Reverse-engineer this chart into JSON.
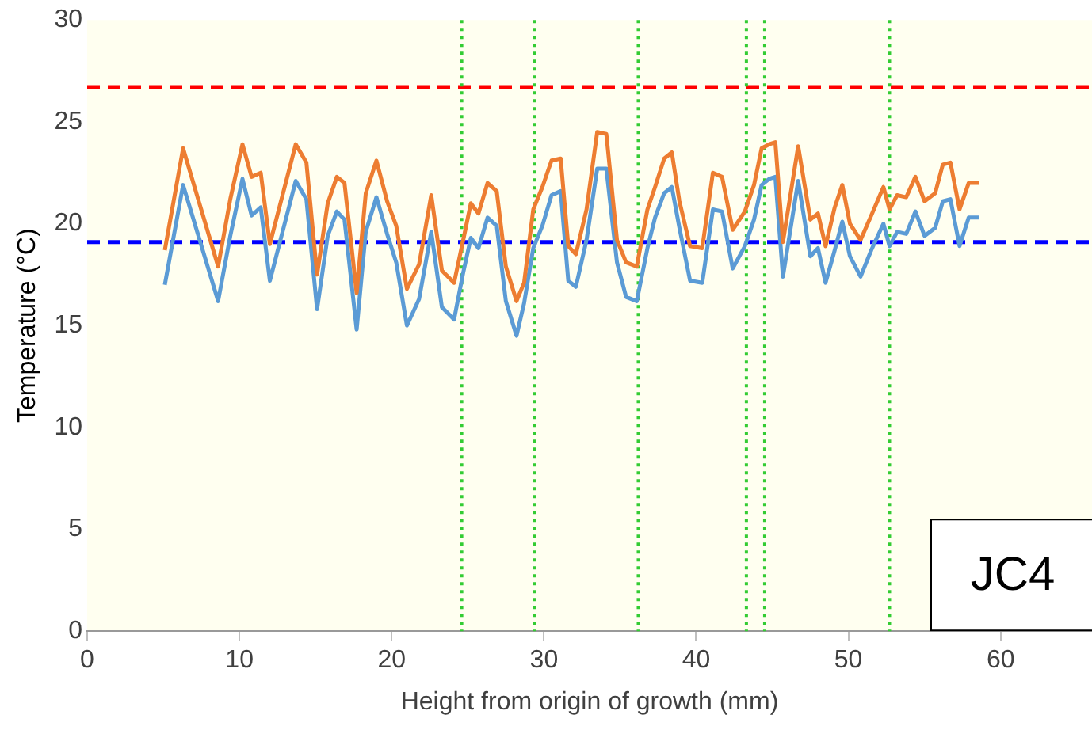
{
  "chart_data": {
    "type": "line",
    "xlabel": "Height from origin of growth (mm)",
    "ylabel": "Temperature (°C)",
    "x": [
      5.1,
      6.3,
      8.6,
      9.4,
      10.2,
      10.8,
      11.4,
      12.0,
      13.7,
      14.4,
      15.1,
      15.8,
      16.4,
      16.9,
      17.7,
      18.3,
      19.0,
      19.7,
      20.3,
      21.0,
      21.8,
      22.6,
      23.3,
      24.1,
      24.7,
      25.2,
      25.7,
      26.3,
      26.9,
      27.5,
      28.2,
      28.7,
      29.3,
      29.9,
      30.5,
      31.1,
      31.6,
      32.1,
      32.8,
      33.5,
      34.1,
      34.8,
      35.4,
      36.1,
      36.8,
      37.3,
      37.9,
      38.4,
      38.9,
      39.6,
      40.4,
      41.1,
      41.7,
      42.4,
      43.2,
      43.8,
      44.3,
      44.8,
      45.2,
      45.7,
      46.7,
      47.5,
      48.0,
      48.5,
      49.1,
      49.6,
      50.1,
      50.8,
      51.5,
      52.3,
      52.7,
      53.2,
      53.8,
      54.4,
      55.0,
      55.7,
      56.2,
      56.7,
      57.3,
      57.9,
      58.6
    ],
    "series": [
      {
        "color": "#ed7d31",
        "values": [
          18.7,
          23.7,
          17.9,
          21.2,
          23.9,
          22.3,
          22.5,
          19.0,
          23.9,
          23.0,
          17.5,
          21.0,
          22.3,
          22.0,
          16.6,
          21.5,
          23.1,
          21.1,
          19.9,
          16.8,
          18.0,
          21.4,
          17.7,
          17.1,
          19.2,
          21.0,
          20.5,
          22.0,
          21.6,
          17.9,
          16.2,
          17.1,
          20.7,
          21.8,
          23.1,
          23.2,
          18.9,
          18.5,
          20.7,
          24.5,
          24.4,
          19.2,
          18.1,
          17.9,
          20.7,
          21.8,
          23.2,
          23.5,
          21.1,
          18.9,
          18.8,
          22.5,
          22.3,
          19.7,
          20.6,
          21.9,
          23.7,
          23.9,
          24.0,
          19.1,
          23.8,
          20.2,
          20.5,
          18.9,
          20.8,
          21.9,
          20.0,
          19.2,
          20.4,
          21.8,
          20.7,
          21.4,
          21.3,
          22.3,
          21.1,
          21.5,
          22.9,
          23.0,
          20.7,
          22.0,
          22.0
        ]
      },
      {
        "color": "#5b9bd5",
        "values": [
          17.0,
          21.9,
          16.2,
          19.4,
          22.2,
          20.4,
          20.8,
          17.2,
          22.1,
          21.2,
          15.8,
          19.4,
          20.6,
          20.2,
          14.8,
          19.6,
          21.3,
          19.5,
          18.1,
          15.0,
          16.3,
          19.6,
          15.9,
          15.3,
          17.6,
          19.3,
          18.8,
          20.3,
          19.9,
          16.2,
          14.5,
          16.1,
          18.8,
          19.9,
          21.4,
          21.6,
          17.2,
          16.9,
          19.2,
          22.7,
          22.7,
          18.1,
          16.4,
          16.2,
          18.8,
          20.3,
          21.5,
          21.8,
          19.8,
          17.2,
          17.1,
          20.7,
          20.6,
          17.8,
          18.9,
          20.2,
          21.9,
          22.2,
          22.3,
          17.4,
          22.1,
          18.4,
          18.8,
          17.1,
          18.7,
          20.1,
          18.4,
          17.4,
          18.7,
          20.0,
          18.9,
          19.6,
          19.5,
          20.6,
          19.4,
          19.8,
          21.1,
          21.2,
          18.9,
          20.3,
          20.3
        ]
      }
    ],
    "xlim": [
      0,
      66
    ],
    "xticks": [
      0,
      10,
      20,
      30,
      40,
      50,
      60
    ],
    "ylim": [
      0,
      30
    ],
    "yticks": [
      0,
      5,
      10,
      15,
      20,
      25,
      30
    ],
    "grid": false,
    "legend": false,
    "marker": "none",
    "line_style": "solid",
    "ref_lines": [
      {
        "axis": "y",
        "value": 26.7,
        "color": "#ff0000",
        "line_style": "dashed"
      },
      {
        "axis": "y",
        "value": 19.1,
        "color": "#0000ff",
        "line_style": "dashed"
      },
      {
        "axis": "x",
        "value": 24.6,
        "color": "#33cc33",
        "line_style": "dotted"
      },
      {
        "axis": "x",
        "value": 29.4,
        "color": "#33cc33",
        "line_style": "dotted"
      },
      {
        "axis": "x",
        "value": 36.2,
        "color": "#33cc33",
        "line_style": "dotted"
      },
      {
        "axis": "x",
        "value": 43.3,
        "color": "#33cc33",
        "line_style": "dotted"
      },
      {
        "axis": "x",
        "value": 44.5,
        "color": "#33cc33",
        "line_style": "dotted"
      },
      {
        "axis": "x",
        "value": 52.7,
        "color": "#33cc33",
        "line_style": "dotted"
      }
    ],
    "annotations": [
      "JC4"
    ]
  }
}
